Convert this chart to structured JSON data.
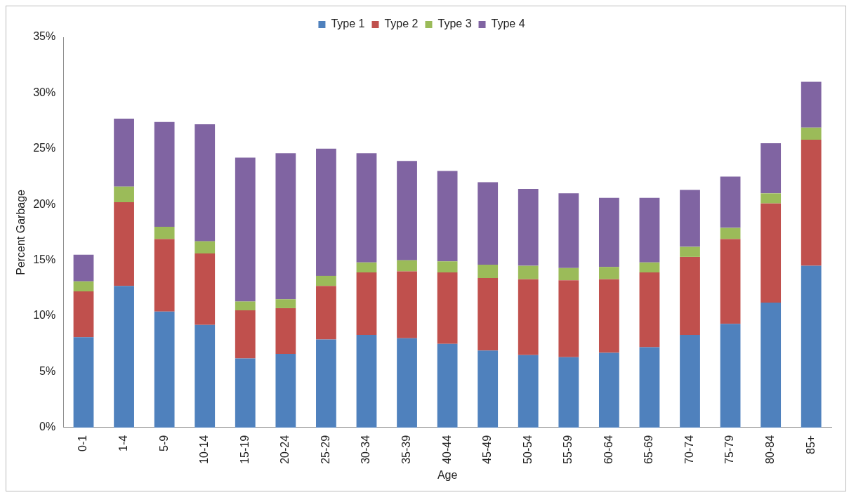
{
  "chart_data": {
    "type": "bar",
    "stacked": true,
    "xlabel": "Age",
    "ylabel": "Percent Garbage",
    "legend": "top",
    "categories": [
      "0-1",
      "1-4",
      "5-9",
      "10-14",
      "15-19",
      "20-24",
      "25-29",
      "30-34",
      "35-39",
      "40-44",
      "45-49",
      "50-54",
      "55-59",
      "60-64",
      "65-69",
      "70-74",
      "75-79",
      "80-84",
      "85+"
    ],
    "ylim": [
      0,
      35
    ],
    "yticks": [
      {
        "value": 0,
        "label": "0%"
      },
      {
        "value": 5,
        "label": "5%"
      },
      {
        "value": 10,
        "label": "10%"
      },
      {
        "value": 15,
        "label": "15%"
      },
      {
        "value": 20,
        "label": "20%"
      },
      {
        "value": 25,
        "label": "25%"
      },
      {
        "value": 30,
        "label": "30%"
      },
      {
        "value": 35,
        "label": "35%"
      }
    ],
    "series": [
      {
        "name": "Type 1",
        "color": "#4f81bd",
        "values": [
          8.1,
          12.7,
          10.4,
          9.2,
          6.2,
          6.6,
          7.9,
          8.3,
          8.0,
          7.5,
          6.9,
          6.5,
          6.3,
          6.7,
          7.2,
          8.3,
          9.3,
          11.2,
          14.5
        ]
      },
      {
        "name": "Type 2",
        "color": "#c0504d",
        "values": [
          4.1,
          7.5,
          6.5,
          6.4,
          4.3,
          4.1,
          4.8,
          5.6,
          6.0,
          6.4,
          6.5,
          6.8,
          6.9,
          6.6,
          6.7,
          7.0,
          7.6,
          8.9,
          11.3
        ]
      },
      {
        "name": "Type 3",
        "color": "#9bbb59",
        "values": [
          0.9,
          1.4,
          1.1,
          1.1,
          0.8,
          0.8,
          0.9,
          0.9,
          1.0,
          1.0,
          1.2,
          1.2,
          1.1,
          1.1,
          0.9,
          0.9,
          1.0,
          0.9,
          1.1
        ]
      },
      {
        "name": "Type 4",
        "color": "#8064a2",
        "values": [
          2.4,
          6.1,
          9.4,
          10.5,
          12.9,
          13.1,
          11.4,
          9.8,
          8.9,
          8.1,
          7.4,
          6.9,
          6.7,
          6.2,
          5.8,
          5.1,
          4.6,
          4.5,
          4.1
        ]
      }
    ]
  }
}
